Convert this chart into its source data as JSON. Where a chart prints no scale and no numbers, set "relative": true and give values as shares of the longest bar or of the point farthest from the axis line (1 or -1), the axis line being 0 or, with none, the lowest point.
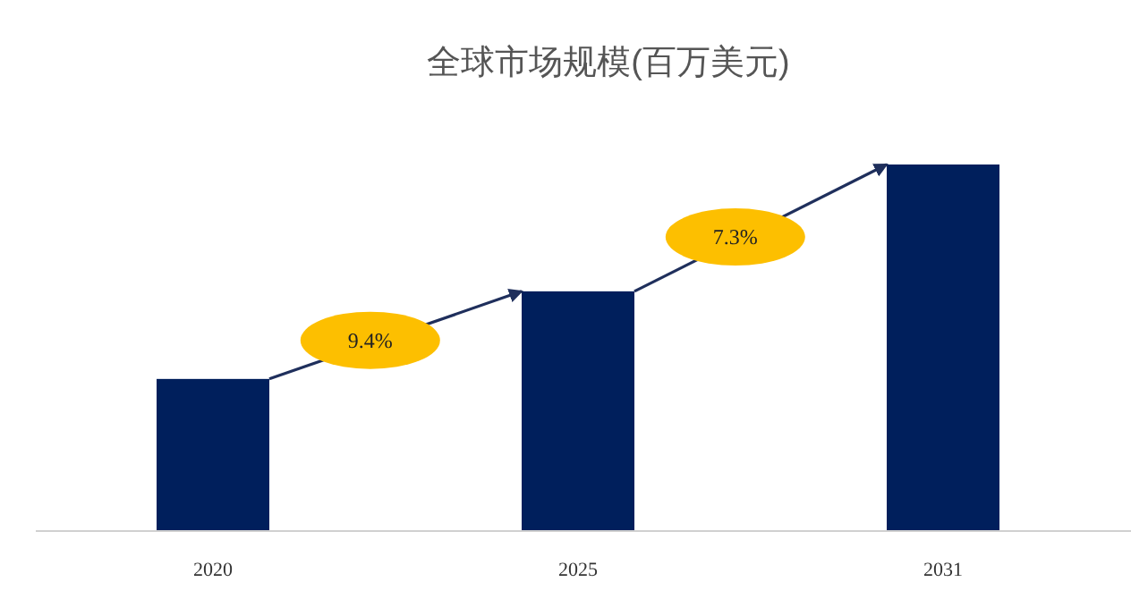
{
  "chart_data": {
    "type": "bar",
    "title": "全球市场规模(百万美元)",
    "categories": [
      "2020",
      "2025",
      "2031"
    ],
    "values": [
      0.415,
      0.654,
      1
    ],
    "color": "#001f5c",
    "relative": true,
    "annotations": [
      "9.4%",
      "7.3%"
    ]
  }
}
